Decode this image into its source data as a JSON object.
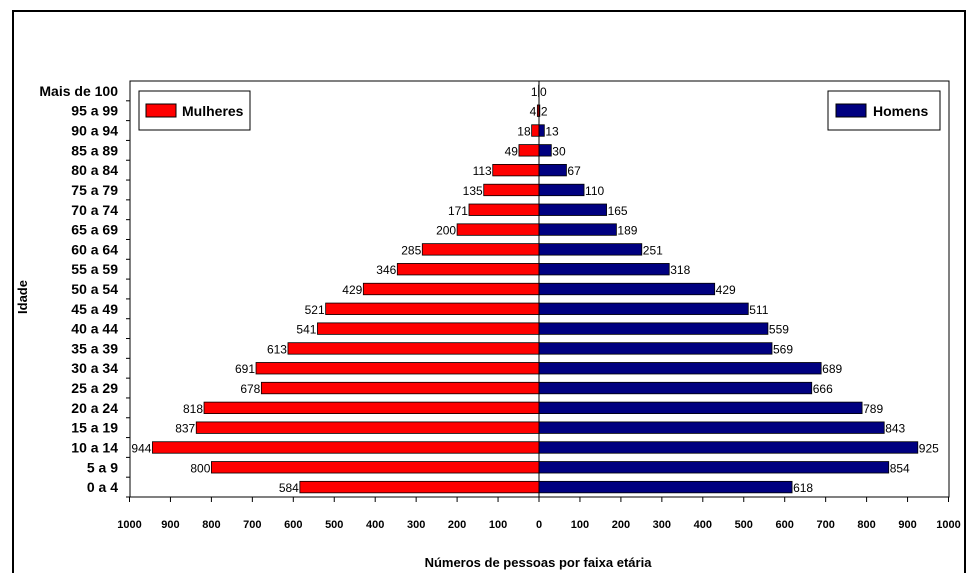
{
  "chart_data": {
    "type": "bar",
    "xlabel": "Números de pessoas por faixa etária",
    "ylabel": "Idade",
    "xlim": [
      -1000,
      1000
    ],
    "x_ticks": [
      "1000",
      "900",
      "800",
      "700",
      "600",
      "500",
      "400",
      "300",
      "200",
      "100",
      "0",
      "100",
      "200",
      "300",
      "400",
      "500",
      "600",
      "700",
      "800",
      "900",
      "1000"
    ],
    "categories": [
      "0 a 4",
      "5 a 9",
      "10 a 14",
      "15 a 19",
      "20 a 24",
      "25 a 29",
      "30 a 34",
      "35 a 39",
      "40 a 44",
      "45 a 49",
      "50 a 54",
      "55 a 59",
      "60 a 64",
      "65 a 69",
      "70 a 74",
      "75 a 79",
      "80 a 84",
      "85 a 89",
      "90 a 94",
      "95 a 99",
      "Mais de 100"
    ],
    "series": [
      {
        "name": "Mulheres",
        "color": "#ff0000",
        "side": "left",
        "values": [
          584,
          800,
          944,
          837,
          818,
          678,
          691,
          613,
          541,
          521,
          429,
          346,
          285,
          200,
          171,
          135,
          113,
          49,
          18,
          4,
          1
        ]
      },
      {
        "name": "Homens",
        "color": "#000080",
        "side": "right",
        "values": [
          618,
          854,
          925,
          843,
          789,
          666,
          689,
          569,
          559,
          511,
          429,
          318,
          251,
          189,
          165,
          110,
          67,
          30,
          13,
          2,
          0
        ]
      }
    ],
    "legend": [
      "top-left",
      "top-right"
    ],
    "grid": false
  }
}
